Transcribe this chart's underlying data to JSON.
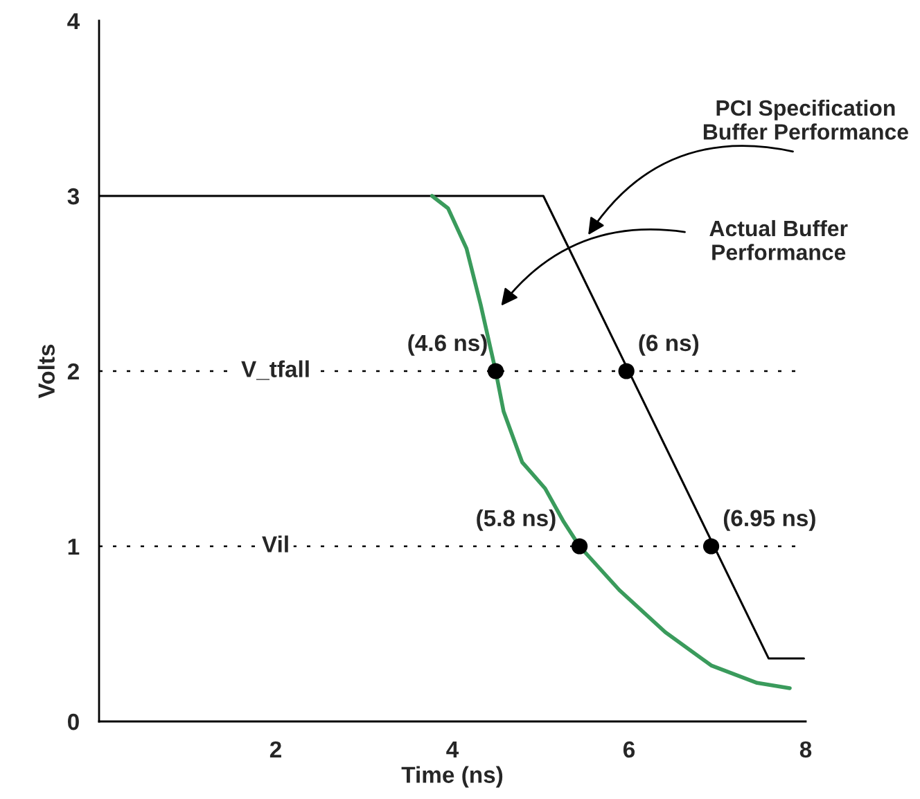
{
  "chart_data": {
    "type": "line",
    "xlabel": "Time (ns)",
    "ylabel": "Volts",
    "xlim": [
      0,
      8
    ],
    "ylim": [
      0,
      4
    ],
    "xticks": [
      2,
      4,
      6,
      8
    ],
    "yticks": [
      0,
      1,
      2,
      3,
      4
    ],
    "grid": false,
    "legend": false,
    "marker": "none",
    "line_style": "solid",
    "series": [
      {
        "color": "#000000",
        "x": [
          0,
          5.03,
          7.58,
          7.98
        ],
        "values": [
          3,
          3,
          0.36,
          0.36
        ]
      },
      {
        "color": "#3a9b5c",
        "x": [
          3.77,
          3.95,
          4.16,
          4.32,
          4.49,
          4.58,
          4.79,
          5.05,
          5.26,
          5.44,
          5.89,
          6.41,
          6.93,
          7.45,
          7.82
        ],
        "values": [
          3,
          2.93,
          2.7,
          2.38,
          2.0,
          1.77,
          1.48,
          1.33,
          1.14,
          1.0,
          0.75,
          0.51,
          0.32,
          0.22,
          0.19
        ]
      },
      {
        "type": "scatter",
        "marker": "circle",
        "color": "#000000",
        "x": [
          4.49,
          5.97,
          5.44,
          6.93
        ],
        "values": [
          2,
          2,
          1,
          1
        ]
      }
    ],
    "ref_lines": [
      {
        "axis": "y",
        "value": 2,
        "label": "V_tfall",
        "color": "#000000",
        "line_style": "dotted"
      },
      {
        "axis": "y",
        "value": 1,
        "label": "Vil",
        "color": "#000000",
        "line_style": "dotted"
      }
    ],
    "annotations": [
      {
        "text": "(4.6 ns)",
        "x": 4.49,
        "y": 2
      },
      {
        "text": "(6 ns)",
        "x": 5.97,
        "y": 2
      },
      {
        "text": "(5.8 ns)",
        "x": 5.44,
        "y": 1
      },
      {
        "text": "(6.95 ns)",
        "x": 6.93,
        "y": 1
      },
      "PCI Specification\nBuffer Performance",
      "Actual Buffer\nPerformance"
    ]
  }
}
